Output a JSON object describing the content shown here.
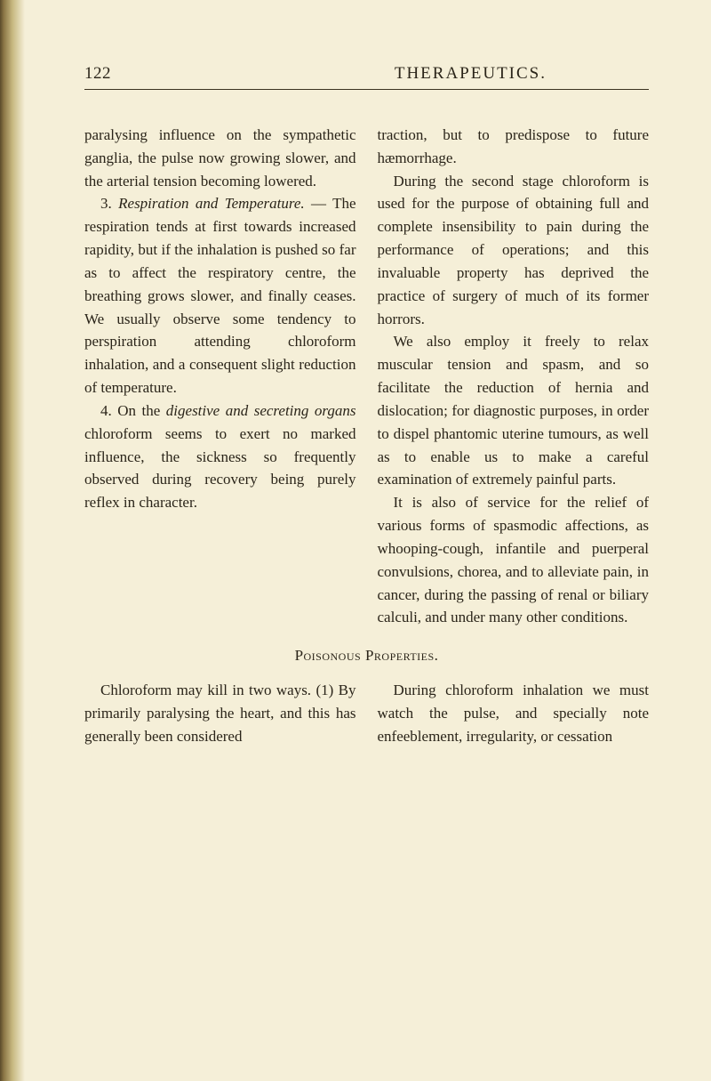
{
  "page": {
    "number": "122",
    "running_title": "THERAPEUTICS."
  },
  "col_left": {
    "p1": "paralysing influence on the sympathetic ganglia, the pulse now growing slower, and the arterial tension becoming lowered.",
    "p2a": "3. ",
    "p2b": "Respiration and Temperature.",
    "p2c": " — The respiration tends at first towards increased rapidity, but if the inhalation is pushed so far as to affect the respiratory centre, the breathing grows slower, and finally ceases. We usually observe some tendency to perspiration attending chloroform inhalation, and a consequent slight reduction of temperature.",
    "p3a": "4. On the ",
    "p3b": "digestive and secreting organs",
    "p3c": " chloroform seems to exert no marked influence, the sickness so frequently observed during recovery being purely reflex in character."
  },
  "col_right": {
    "p1": "traction, but to predispose to future hæmorrhage.",
    "p2": "During the second stage chloroform is used for the purpose of obtaining full and complete insensibility to pain during the performance of operations; and this invaluable property has deprived the practice of surgery of much of its former horrors.",
    "p3": "We also employ it freely to relax muscular tension and spasm, and so facilitate the reduction of hernia and dislocation; for diagnostic purposes, in order to dispel phantomic uterine tumours, as well as to enable us to make a careful examination of extremely painful parts.",
    "p4": "It is also of service for the relief of various forms of spasmodic affections, as whooping-cough, infantile and puerperal convulsions, chorea, and to alleviate pain, in cancer, during the passing of renal or biliary calculi, and under many other conditions."
  },
  "section": {
    "heading": "Poisonous Properties."
  },
  "col2_left": {
    "p1": "Chloroform may kill in two ways. (1) By primarily paralysing the heart, and this has generally been considered"
  },
  "col2_right": {
    "p1": "During chloroform inhalation we must watch the pulse, and specially note enfeeblement, irregularity, or cessation"
  },
  "style": {
    "background_color": "#f5efd8",
    "text_color": "#2a2419",
    "body_fontsize": 17,
    "header_fontsize": 19,
    "line_height": 1.52,
    "font_family": "Times New Roman"
  }
}
